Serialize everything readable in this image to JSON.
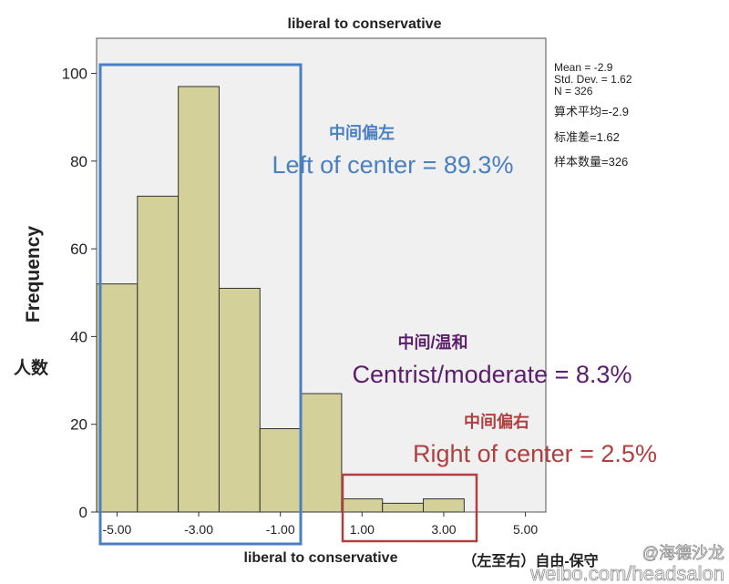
{
  "chart_data": {
    "type": "bar",
    "title": "liberal to conservative",
    "xlabel": "liberal to conservative",
    "ylabel": "Frequency",
    "x_ticks": [
      "-5.00",
      "-3.00",
      "-1.00",
      "1.00",
      "3.00",
      "5.00"
    ],
    "y_ticks": [
      "0",
      "20",
      "40",
      "60",
      "80",
      "100"
    ],
    "xlim": [
      -5.5,
      5.5
    ],
    "ylim": [
      0,
      108
    ],
    "bins": [
      {
        "x0": -5.5,
        "x1": -4.5,
        "value": 52
      },
      {
        "x0": -4.5,
        "x1": -3.5,
        "value": 72
      },
      {
        "x0": -3.5,
        "x1": -2.5,
        "value": 97
      },
      {
        "x0": -2.5,
        "x1": -1.5,
        "value": 51
      },
      {
        "x0": -1.5,
        "x1": -0.5,
        "value": 19
      },
      {
        "x0": -0.5,
        "x1": 0.5,
        "value": 27
      },
      {
        "x0": 0.5,
        "x1": 1.5,
        "value": 3
      },
      {
        "x0": 1.5,
        "x1": 2.5,
        "value": 2
      },
      {
        "x0": 2.5,
        "x1": 3.5,
        "value": 3
      }
    ],
    "bar_color": "#d4d09a",
    "plot_background": "#f0f0f0",
    "grid": false,
    "stats": [
      "Mean = -2.9",
      "Std. Dev. = 1.62",
      "N = 326"
    ]
  },
  "annotations": {
    "ylabel_cn": "人数",
    "stats_cn": [
      "算术平均=-2.9",
      "标准差=1.62",
      "样本数量=326"
    ],
    "xlabel_cn": "（左至右）自由-保守",
    "left_cn": "中间偏左",
    "left_en": "Left of center = 89.3%",
    "left_color": "#4a7fc1",
    "center_cn": "中间/温和",
    "center_en": "Centrist/moderate = 8.3%",
    "center_color": "#5b1e6b",
    "right_cn": "中间偏右",
    "right_en": "Right of center = 2.5%",
    "right_color": "#b04040"
  },
  "watermark": {
    "line1": "@海德沙龙",
    "line2": "weibo.com/headsalon"
  }
}
